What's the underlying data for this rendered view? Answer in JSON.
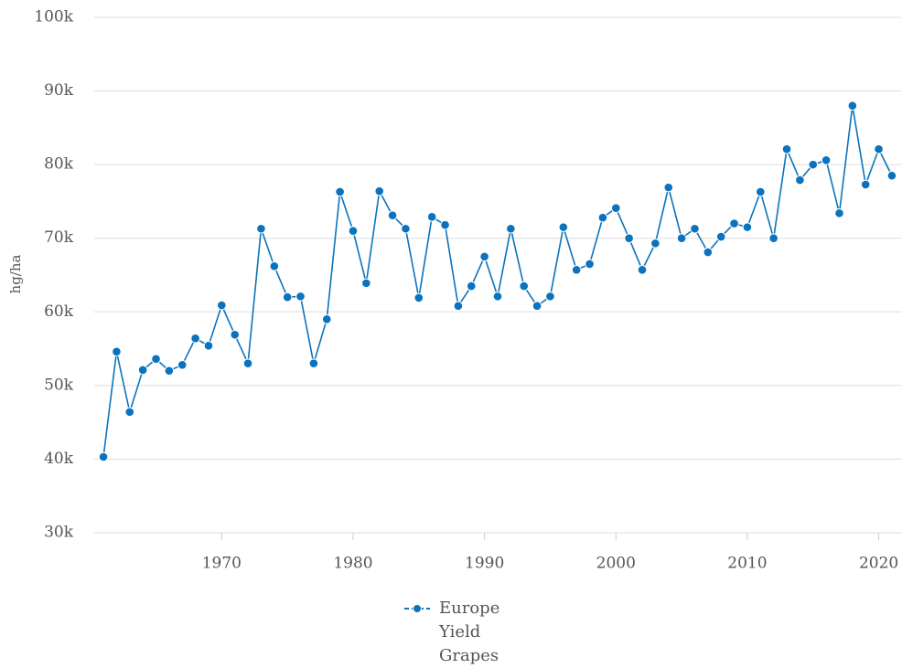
{
  "chart_data": {
    "type": "line",
    "y_label": "hg/ha",
    "x": [
      1961,
      1962,
      1963,
      1964,
      1965,
      1966,
      1967,
      1968,
      1969,
      1970,
      1971,
      1972,
      1973,
      1974,
      1975,
      1976,
      1977,
      1978,
      1979,
      1980,
      1981,
      1982,
      1983,
      1984,
      1985,
      1986,
      1987,
      1988,
      1989,
      1990,
      1991,
      1992,
      1993,
      1994,
      1995,
      1996,
      1997,
      1998,
      1999,
      2000,
      2001,
      2002,
      2003,
      2004,
      2005,
      2006,
      2007,
      2008,
      2009,
      2010,
      2011,
      2012,
      2013,
      2014,
      2015,
      2016,
      2017,
      2018,
      2019,
      2020,
      2021
    ],
    "series": [
      {
        "name": "Europe Yield Grapes",
        "color": "#0b73bd",
        "values": [
          40300,
          54600,
          46400,
          52100,
          53600,
          52000,
          52800,
          56400,
          55400,
          60900,
          56900,
          53000,
          71300,
          66200,
          62000,
          62100,
          53000,
          59000,
          76300,
          71000,
          63900,
          76400,
          73100,
          71300,
          61900,
          72900,
          71800,
          60800,
          63500,
          67500,
          62100,
          71300,
          63500,
          60800,
          62100,
          71500,
          65700,
          66500,
          72800,
          74100,
          70000,
          65700,
          69300,
          76900,
          70000,
          71300,
          68100,
          70200,
          72000,
          71500,
          76300,
          70000,
          82100,
          77900,
          80000,
          80600,
          73400,
          88000,
          77300,
          82100,
          78500
        ]
      }
    ],
    "xlim": [
      1960.3,
      2021.7
    ],
    "xticks": [
      1970,
      1980,
      1990,
      2000,
      2010,
      2020
    ],
    "ylim": [
      30000,
      100000
    ],
    "yticks": [
      {
        "value": 30000,
        "label": "30k"
      },
      {
        "value": 40000,
        "label": "40k"
      },
      {
        "value": 50000,
        "label": "50k"
      },
      {
        "value": 60000,
        "label": "60k"
      },
      {
        "value": 70000,
        "label": "70k"
      },
      {
        "value": 80000,
        "label": "80k"
      },
      {
        "value": 90000,
        "label": "90k"
      },
      {
        "value": 100000,
        "label": "100k"
      }
    ],
    "grid": true
  }
}
